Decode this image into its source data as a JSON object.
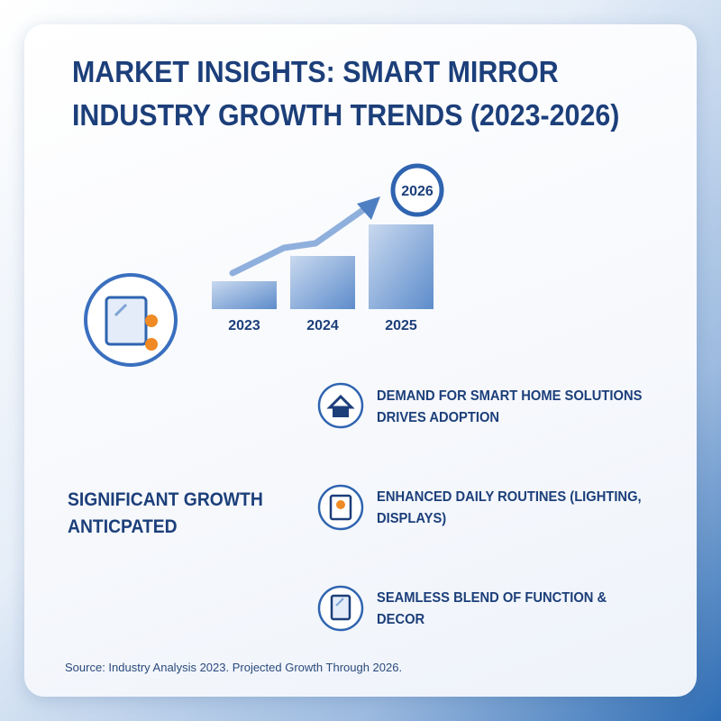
{
  "header": {
    "title": "MARKET INSIGHTS: SMART MIRROR INDUSTRY GROWTH TRENDS (2023-2026)"
  },
  "growth_graphic": {
    "years": [
      "2023",
      "2024",
      "2025"
    ],
    "target_year": "2026"
  },
  "highlight": "SIGNIFICANT GROWTH ANTICPATED",
  "insights": [
    "DEMAND FOR SMART HOME SOLUTIONS DRIVES ADOPTION",
    "ENHANCED DAILY ROUTINES (LIGHTING, DISPLAYS)",
    "SEAMLESS BLEND OF FUNCTION & DECOR"
  ],
  "footer": {
    "source": "Source: Industry Analysis 2023. Projected Growth Through 2026."
  }
}
